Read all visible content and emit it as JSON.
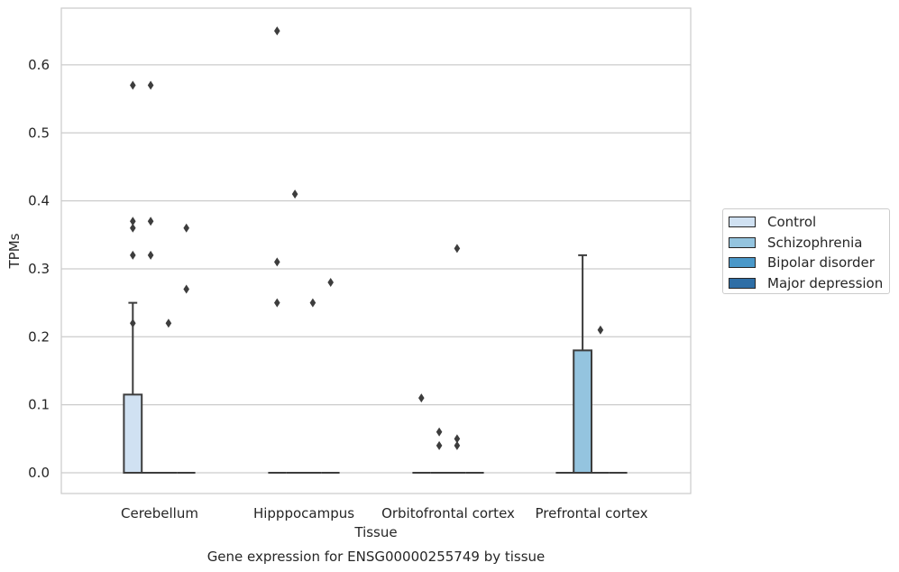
{
  "chart_data": {
    "type": "box",
    "title": "Gene expression for ENSG00000255749 by tissue",
    "xlabel": "Tissue",
    "ylabel": "TPMs",
    "ylim": [
      -0.032,
      0.685
    ],
    "yticks": [
      "0.0",
      "0.1",
      "0.2",
      "0.3",
      "0.4",
      "0.5",
      "0.6"
    ],
    "ytick_values": [
      0.0,
      0.1,
      0.2,
      0.3,
      0.4,
      0.5,
      0.6
    ],
    "grid": true,
    "legend_position": "right",
    "categories": [
      "Cerebellum",
      "Hipppocampus",
      "Orbitofrontal cortex",
      "Prefrontal cortex"
    ],
    "series": [
      {
        "name": "Control",
        "color": "#d0e1f2",
        "boxes": [
          {
            "category": "Cerebellum",
            "q1": 0.0,
            "median": 0.0,
            "q3": 0.115,
            "whisker_low": 0.0,
            "whisker_high": 0.25,
            "outliers": [
              0.36,
              0.57,
              0.37,
              0.32,
              0.22
            ]
          },
          {
            "category": "Hipppocampus",
            "q1": 0.0,
            "median": 0.0,
            "q3": 0.0,
            "whisker_low": 0.0,
            "whisker_high": 0.0,
            "outliers": [
              0.65,
              0.31,
              0.25
            ]
          },
          {
            "category": "Orbitofrontal cortex",
            "q1": 0.0,
            "median": 0.0,
            "q3": 0.0,
            "whisker_low": 0.0,
            "whisker_high": 0.0,
            "outliers": [
              0.11
            ]
          },
          {
            "category": "Prefrontal cortex",
            "q1": 0.0,
            "median": 0.0,
            "q3": 0.0,
            "whisker_low": 0.0,
            "whisker_high": 0.0,
            "outliers": []
          }
        ]
      },
      {
        "name": "Schizophrenia",
        "color": "#94c4df",
        "boxes": [
          {
            "category": "Cerebellum",
            "q1": 0.0,
            "median": 0.0,
            "q3": 0.0,
            "whisker_low": 0.0,
            "whisker_high": 0.0,
            "outliers": [
              0.37,
              0.57,
              0.32
            ]
          },
          {
            "category": "Hipppocampus",
            "q1": 0.0,
            "median": 0.0,
            "q3": 0.0,
            "whisker_low": 0.0,
            "whisker_high": 0.0,
            "outliers": [
              0.41
            ]
          },
          {
            "category": "Orbitofrontal cortex",
            "q1": 0.0,
            "median": 0.0,
            "q3": 0.0,
            "whisker_low": 0.0,
            "whisker_high": 0.0,
            "outliers": [
              0.06,
              0.04
            ]
          },
          {
            "category": "Prefrontal cortex",
            "q1": 0.0,
            "median": 0.0,
            "q3": 0.18,
            "whisker_low": 0.0,
            "whisker_high": 0.32,
            "outliers": []
          }
        ]
      },
      {
        "name": "Bipolar disorder",
        "color": "#4a98c9",
        "boxes": [
          {
            "category": "Cerebellum",
            "q1": 0.0,
            "median": 0.0,
            "q3": 0.0,
            "whisker_low": 0.0,
            "whisker_high": 0.0,
            "outliers": [
              0.22
            ]
          },
          {
            "category": "Hipppocampus",
            "q1": 0.0,
            "median": 0.0,
            "q3": 0.0,
            "whisker_low": 0.0,
            "whisker_high": 0.0,
            "outliers": [
              0.25
            ]
          },
          {
            "category": "Orbitofrontal cortex",
            "q1": 0.0,
            "median": 0.0,
            "q3": 0.0,
            "whisker_low": 0.0,
            "whisker_high": 0.0,
            "outliers": [
              0.33,
              0.05,
              0.04
            ]
          },
          {
            "category": "Prefrontal cortex",
            "q1": 0.0,
            "median": 0.0,
            "q3": 0.0,
            "whisker_low": 0.0,
            "whisker_high": 0.0,
            "outliers": [
              0.21
            ]
          }
        ]
      },
      {
        "name": "Major depression",
        "color": "#2e6ea6",
        "boxes": [
          {
            "category": "Cerebellum",
            "q1": 0.0,
            "median": 0.0,
            "q3": 0.0,
            "whisker_low": 0.0,
            "whisker_high": 0.0,
            "outliers": [
              0.36,
              0.27
            ]
          },
          {
            "category": "Hipppocampus",
            "q1": 0.0,
            "median": 0.0,
            "q3": 0.0,
            "whisker_low": 0.0,
            "whisker_high": 0.0,
            "outliers": [
              0.28
            ]
          },
          {
            "category": "Orbitofrontal cortex",
            "q1": 0.0,
            "median": 0.0,
            "q3": 0.0,
            "whisker_low": 0.0,
            "whisker_high": 0.0,
            "outliers": []
          },
          {
            "category": "Prefrontal cortex",
            "q1": 0.0,
            "median": 0.0,
            "q3": 0.0,
            "whisker_low": 0.0,
            "whisker_high": 0.0,
            "outliers": []
          }
        ]
      }
    ]
  }
}
